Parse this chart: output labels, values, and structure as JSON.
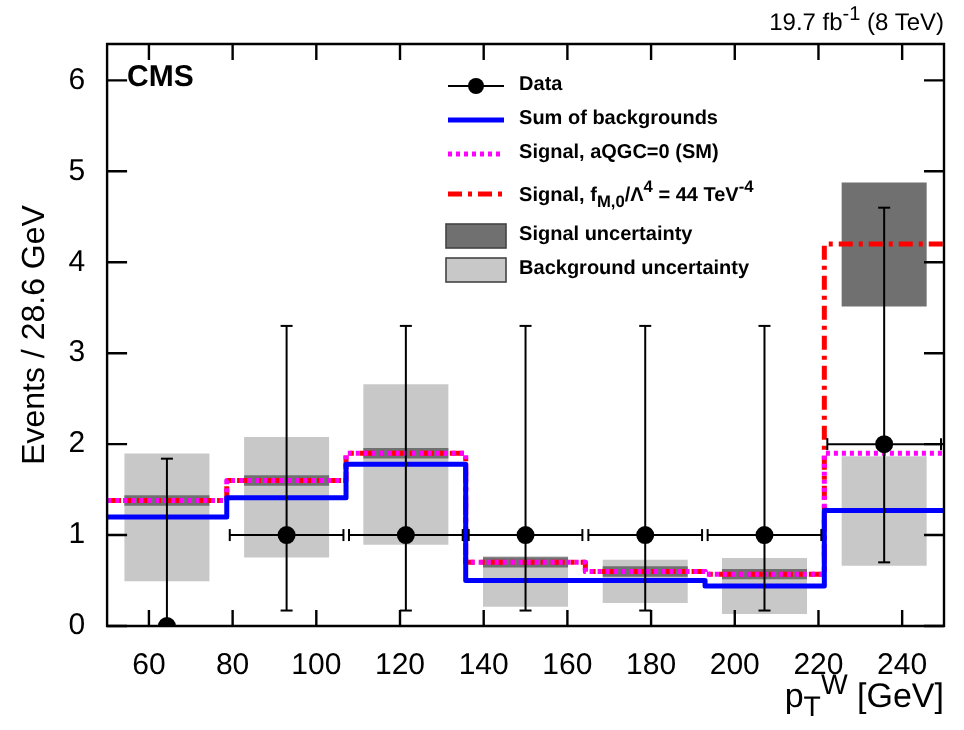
{
  "chart_data": {
    "type": "step",
    "ylabel": "Events / 28.6 GeV",
    "xlabel": "p$_{T}$$^{W}$ [GeV]",
    "annotations": [
      "CMS",
      "19.7 fb$^{-1}$ (8 TeV)"
    ],
    "xlim": [
      50,
      250
    ],
    "xticks": [
      60,
      80,
      100,
      120,
      140,
      160,
      180,
      200,
      220,
      240
    ],
    "ylim": [
      0,
      6.4
    ],
    "yticks": [
      0,
      1,
      2,
      3,
      4,
      5,
      6
    ],
    "grid": false,
    "legend": "top right",
    "series": [
      {
        "name": "Data",
        "type": "scatter",
        "color": "#000000",
        "marker": "circle",
        "x": [
          64.3,
          92.9,
          121.4,
          150,
          178.6,
          207.1,
          235.7
        ],
        "values": [
          0,
          1,
          1,
          1,
          1,
          1,
          2
        ],
        "errors": [
          [
            0,
            1.84
          ],
          [
            0.17,
            3.3
          ],
          [
            0.17,
            3.3
          ],
          [
            0.17,
            3.3
          ],
          [
            0.17,
            3.3
          ],
          [
            0.17,
            3.3
          ],
          [
            0.7,
            4.6
          ]
        ],
        "xerrors": [
          null,
          14.3,
          14.3,
          14.3,
          14.3,
          14.3,
          14.3
        ]
      },
      {
        "name": "Sum of backgrounds",
        "color": "#0000ff",
        "line_style": "solid",
        "x": [
          50,
          78.6,
          107.1,
          135.7,
          164.3,
          192.9,
          221.4,
          250
        ],
        "values": [
          1.2,
          1.41,
          1.78,
          0.5,
          0.5,
          0.44,
          1.27,
          1.27
        ]
      },
      {
        "name": "Signal, aQGC=0 (SM)",
        "color": "#ff00ff",
        "line_style": "dotted",
        "x": [
          50,
          78.6,
          107.1,
          135.7,
          164.3,
          192.9,
          221.4,
          250
        ],
        "values": [
          1.38,
          1.6,
          1.9,
          0.7,
          0.6,
          0.57,
          1.9,
          1.9
        ]
      },
      {
        "name": "Signal, f$_{M,0}$/Λ$^{4}$ = 44 TeV$^{-4}$",
        "color": "#ff0000",
        "line_style": "dashed",
        "x": [
          50,
          78.6,
          107.1,
          135.7,
          164.3,
          192.9,
          221.4,
          250
        ],
        "values": [
          1.38,
          1.6,
          1.9,
          0.7,
          0.6,
          0.57,
          4.2,
          4.2
        ]
      },
      {
        "name": "Signal uncertainty",
        "type": "bar",
        "color": "#707070",
        "x": [
          64.3,
          92.9,
          121.4,
          150,
          178.6,
          207.1,
          235.7
        ],
        "base": [
          1.33,
          1.55,
          1.85,
          0.65,
          0.55,
          0.52,
          3.52
        ],
        "values": [
          0.1,
          0.1,
          0.1,
          0.1,
          0.1,
          0.1,
          1.35
        ]
      },
      {
        "name": "Background uncertainty",
        "type": "bar",
        "color": "#c8c8c8",
        "x": [
          64.3,
          92.9,
          121.4,
          150,
          178.6,
          207.1,
          235.7
        ],
        "base": [
          0.5,
          0.76,
          0.9,
          0.22,
          0.26,
          0.14,
          0.67
        ],
        "values": [
          1.39,
          1.31,
          1.75,
          0.54,
          0.46,
          0.6,
          1.19
        ]
      }
    ]
  }
}
